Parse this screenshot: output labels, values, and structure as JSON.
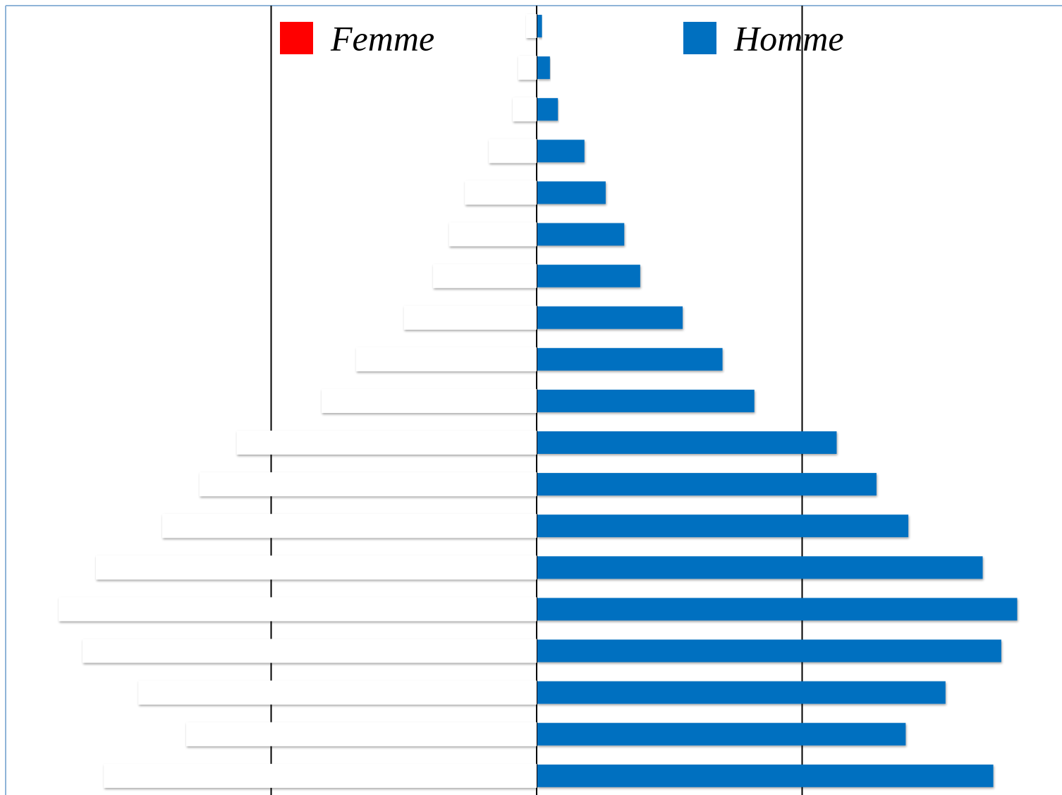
{
  "chart_data": {
    "type": "pyramid",
    "categories": [
      null,
      null,
      null,
      null,
      null,
      null,
      null,
      null,
      null,
      null,
      null,
      null,
      null,
      null,
      null,
      null,
      null,
      null,
      null
    ],
    "series": [
      {
        "name": "Femme",
        "color": "#ff0000",
        "bar_fill": "#ffffff",
        "side": "left",
        "values": [
          0.04,
          0.07,
          0.09,
          0.18,
          0.27,
          0.33,
          0.39,
          0.5,
          0.68,
          0.81,
          1.13,
          1.27,
          1.41,
          1.66,
          1.8,
          1.71,
          1.5,
          1.32,
          1.63
        ]
      },
      {
        "name": "Homme",
        "color": "#0070c0",
        "bar_fill": "#0070c0",
        "side": "right",
        "values": [
          0.02,
          0.05,
          0.08,
          0.18,
          0.26,
          0.33,
          0.39,
          0.55,
          0.7,
          0.82,
          1.13,
          1.28,
          1.4,
          1.68,
          1.81,
          1.75,
          1.54,
          1.39,
          1.72
        ]
      }
    ],
    "xlim": [
      -2,
      2
    ],
    "gridlines": [
      -1,
      0,
      1
    ]
  }
}
